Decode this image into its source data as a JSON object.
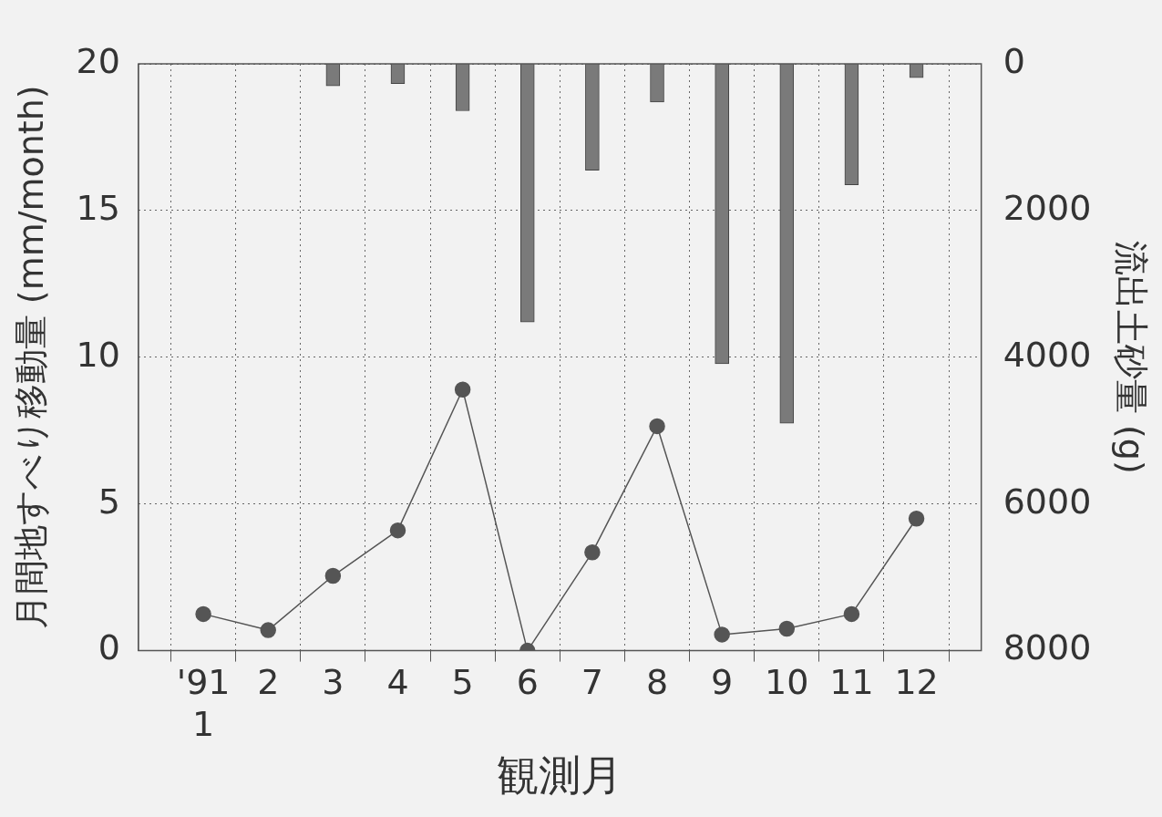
{
  "chart_data": {
    "type": "line",
    "xlabel": "観測月",
    "ylabel": "月間地すべり移動量 (mm/month)",
    "y2label": "流出土砂量 (g)",
    "categories": [
      "'91\n1",
      "2",
      "3",
      "4",
      "5",
      "6",
      "7",
      "8",
      "9",
      "10",
      "11",
      "12"
    ],
    "series": [
      {
        "type": "bar",
        "axis": "y2",
        "color": "#7a7a7a",
        "values": [
          null,
          null,
          300,
          270,
          640,
          3520,
          1450,
          520,
          4090,
          4900,
          1650,
          190
        ]
      },
      {
        "color": "#555555",
        "marker": "circle",
        "values": [
          1.25,
          0.7,
          2.55,
          4.1,
          8.9,
          0,
          3.35,
          7.65,
          0.55,
          0.75,
          1.25,
          4.5
        ]
      }
    ],
    "ylim": [
      0,
      20
    ],
    "yticks": [
      0,
      5,
      10,
      15,
      20
    ],
    "y2lim": [
      8000,
      0
    ],
    "y2ticks": [
      0,
      2000,
      4000,
      6000,
      8000
    ],
    "grid": true,
    "line_style": "solid",
    "legend": false
  }
}
